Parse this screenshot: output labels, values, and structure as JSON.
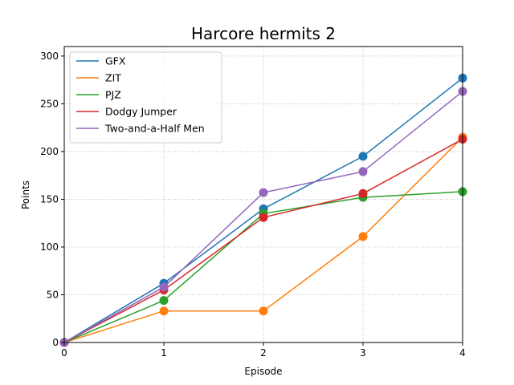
{
  "chart_data": {
    "type": "line",
    "title": "Harcore hermits 2",
    "xlabel": "Episode",
    "ylabel": "Points",
    "x": [
      0,
      1,
      2,
      3,
      4
    ],
    "xlim": [
      0,
      4
    ],
    "ylim": [
      0,
      310
    ],
    "xticks": [
      0,
      1,
      2,
      3,
      4
    ],
    "yticks": [
      0,
      50,
      100,
      150,
      200,
      250,
      300
    ],
    "grid": true,
    "grid_style": "dotted",
    "markers": "circle",
    "legend_position": "top-left",
    "series": [
      {
        "name": "GFX",
        "color": "#1f77b4",
        "values": [
          0,
          62,
          140,
          195,
          277
        ]
      },
      {
        "name": "ZIT",
        "color": "#ff7f0e",
        "values": [
          0,
          33,
          33,
          111,
          215
        ]
      },
      {
        "name": "PJZ",
        "color": "#2ca02c",
        "values": [
          0,
          44,
          135,
          152,
          158
        ]
      },
      {
        "name": "Dodgy Jumper",
        "color": "#d62728",
        "values": [
          0,
          55,
          131,
          156,
          213
        ]
      },
      {
        "name": "Two-and-a-Half Men",
        "color": "#9467bd",
        "values": [
          0,
          58,
          157,
          179,
          263
        ]
      }
    ]
  }
}
